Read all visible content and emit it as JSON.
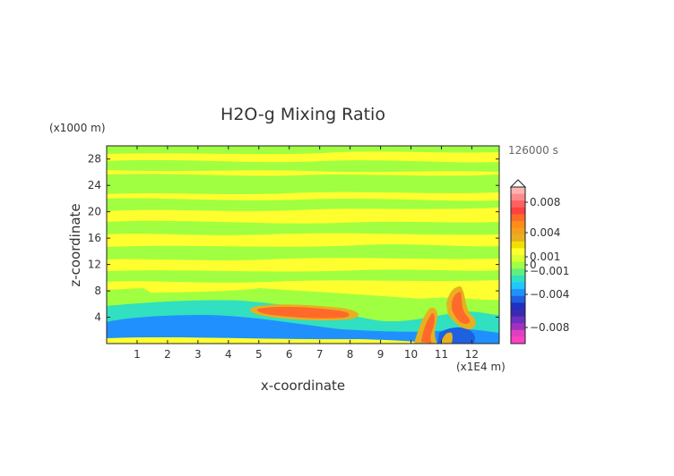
{
  "chart_data": {
    "type": "heatmap",
    "title": "H2O-g Mixing Ratio",
    "xlabel": "x-coordinate",
    "ylabel": "z-coordinate",
    "x_unit": "(x1E4 m)",
    "y_unit": "(x1000 m)",
    "time_label": "126000 s",
    "xlim": [
      0,
      12.9
    ],
    "ylim": [
      0,
      30
    ],
    "x_ticks": [
      1,
      2,
      3,
      4,
      5,
      6,
      7,
      8,
      9,
      10,
      11,
      12
    ],
    "y_ticks": [
      4,
      8,
      12,
      16,
      20,
      24,
      28
    ],
    "colorbar": {
      "labeled_levels": [
        0.008,
        0.004,
        0.001,
        0,
        -0.001,
        -0.004,
        -0.008
      ],
      "labels": [
        "0.008",
        "0.004",
        "0.001",
        "0",
        "−0.001",
        "−0.004",
        "−0.008"
      ],
      "colors_top_to_bottom": [
        "#ffb3b3",
        "#ff8a8a",
        "#ff6060",
        "#ff4040",
        "#ff6a2a",
        "#ff8c1a",
        "#f2a020",
        "#e8b020",
        "#f0e000",
        "#ffff30",
        "#d8ff30",
        "#a0ff40",
        "#60f080",
        "#30e0c0",
        "#20c8ff",
        "#2090ff",
        "#1e60e0",
        "#2030c0",
        "#3a2ab0",
        "#6a30c0",
        "#a030c0",
        "#e040c0",
        "#ff40c0"
      ]
    },
    "field_regions": [
      {
        "level": "yellow",
        "color": "#ffff30",
        "description": "background"
      },
      {
        "level": "green",
        "color": "#a0ff40"
      },
      {
        "level": "cyan",
        "color": "#30e0c0"
      },
      {
        "level": "blue",
        "color": "#2090ff"
      },
      {
        "level": "orange",
        "color": "#e8b020"
      },
      {
        "level": "red",
        "color": "#ff6a2a"
      }
    ]
  }
}
